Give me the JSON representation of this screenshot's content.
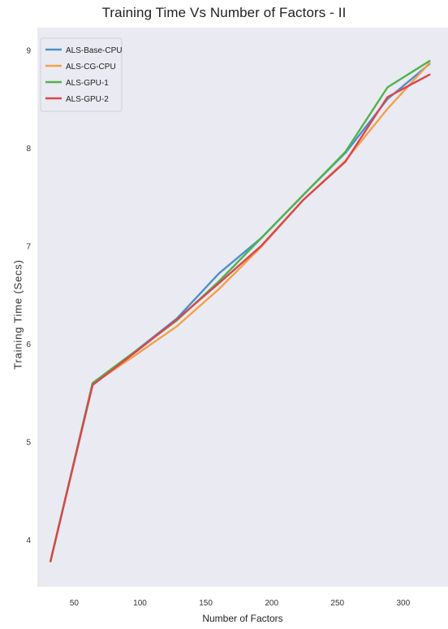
{
  "chart_data": {
    "type": "line",
    "title": "Training Time Vs Number of Factors - II",
    "xlabel": "Number of Factors",
    "ylabel": "Training Time (Secs)",
    "xlim": [
      22,
      334
    ],
    "ylim": [
      3.52,
      9.23
    ],
    "xticks": [
      50,
      100,
      150,
      200,
      250,
      300
    ],
    "yticks": [
      4,
      5,
      6,
      7,
      8,
      9
    ],
    "grid": false,
    "legend_position": "top-left",
    "x": [
      32,
      64,
      96,
      128,
      160,
      192,
      224,
      256,
      288,
      320
    ],
    "series": [
      {
        "name": "ALS-Base-CPU",
        "color": "#4c8fce",
        "values": [
          3.78,
          5.6,
          5.92,
          6.26,
          6.72,
          7.08,
          7.52,
          7.95,
          8.5,
          8.86
        ]
      },
      {
        "name": "ALS-CG-CPU",
        "color": "#f5a04a",
        "values": [
          3.78,
          5.59,
          5.88,
          6.18,
          6.56,
          6.99,
          7.47,
          7.87,
          8.4,
          8.87
        ]
      },
      {
        "name": "ALS-GPU-1",
        "color": "#4fb34c",
        "values": [
          3.78,
          5.6,
          5.92,
          6.24,
          6.64,
          7.08,
          7.52,
          7.96,
          8.62,
          8.89
        ]
      },
      {
        "name": "ALS-GPU-2",
        "color": "#d9464d",
        "values": [
          3.78,
          5.58,
          5.91,
          6.25,
          6.62,
          7.0,
          7.47,
          7.86,
          8.52,
          8.75
        ]
      }
    ]
  }
}
